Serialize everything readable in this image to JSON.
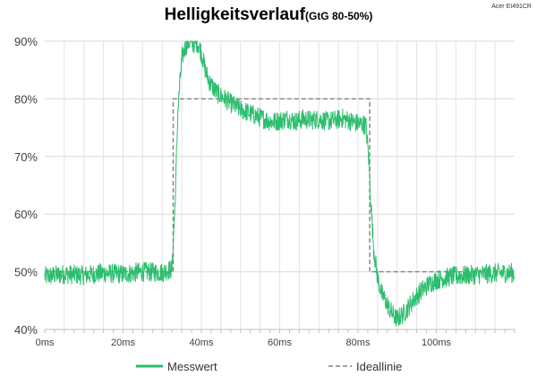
{
  "chart_data": {
    "type": "line",
    "title": "Helligkeitsverlauf",
    "subtitle": "(GtG 80-50%)",
    "device_label": "Acer EI491CR",
    "xlabel": "",
    "ylabel": "",
    "xlim": [
      0,
      120
    ],
    "ylim": [
      40,
      90
    ],
    "x_ticks": [
      0,
      20,
      40,
      60,
      80,
      100
    ],
    "x_tick_labels": [
      "0ms",
      "20ms",
      "40ms",
      "60ms",
      "80ms",
      "100ms"
    ],
    "y_ticks": [
      40,
      50,
      60,
      70,
      80,
      90
    ],
    "y_tick_labels": [
      "40%",
      "50%",
      "60%",
      "70%",
      "80%",
      "90%"
    ],
    "grid": {
      "x": true,
      "y": true
    },
    "legend": {
      "placement": "bottom"
    },
    "series": [
      {
        "name": "Messwert",
        "color": "#2dbd6e",
        "style": "solid-noisy",
        "noise_band": 1.7,
        "x": [
          0,
          5,
          10,
          15,
          20,
          25,
          30,
          32.5,
          33.3,
          34,
          35,
          36,
          37,
          38,
          39,
          40,
          41,
          42,
          44,
          46,
          48,
          50,
          53,
          56,
          58,
          60,
          62,
          64,
          66,
          68,
          70,
          72,
          74,
          76,
          78,
          80,
          82,
          82.7,
          83.3,
          84,
          85,
          86,
          87,
          88,
          89,
          90,
          92,
          94,
          96,
          98,
          100,
          104,
          108,
          112,
          116,
          120
        ],
        "y": [
          49.2,
          49.6,
          49.4,
          49.8,
          49.6,
          50.0,
          49.9,
          50.5,
          62.0,
          78.0,
          87.0,
          89.2,
          90.0,
          89.5,
          89.8,
          88.0,
          85.0,
          83.0,
          81.0,
          80.0,
          79.0,
          78.2,
          77.3,
          76.5,
          76.0,
          76.2,
          76.6,
          76.1,
          76.5,
          76.3,
          76.5,
          76.1,
          76.3,
          76.6,
          76.2,
          75.7,
          75.5,
          70.0,
          62.0,
          54.0,
          49.0,
          46.2,
          45.0,
          43.6,
          42.5,
          41.8,
          43.0,
          45.0,
          46.6,
          47.8,
          48.6,
          49.2,
          49.4,
          49.6,
          49.8,
          49.8
        ]
      },
      {
        "name": "Ideallinie",
        "color": "#808080",
        "style": "dashed",
        "x": [
          0,
          32.8,
          32.8,
          83.0,
          83.0,
          120
        ],
        "y": [
          50,
          50,
          80,
          80,
          50,
          50
        ]
      }
    ]
  }
}
